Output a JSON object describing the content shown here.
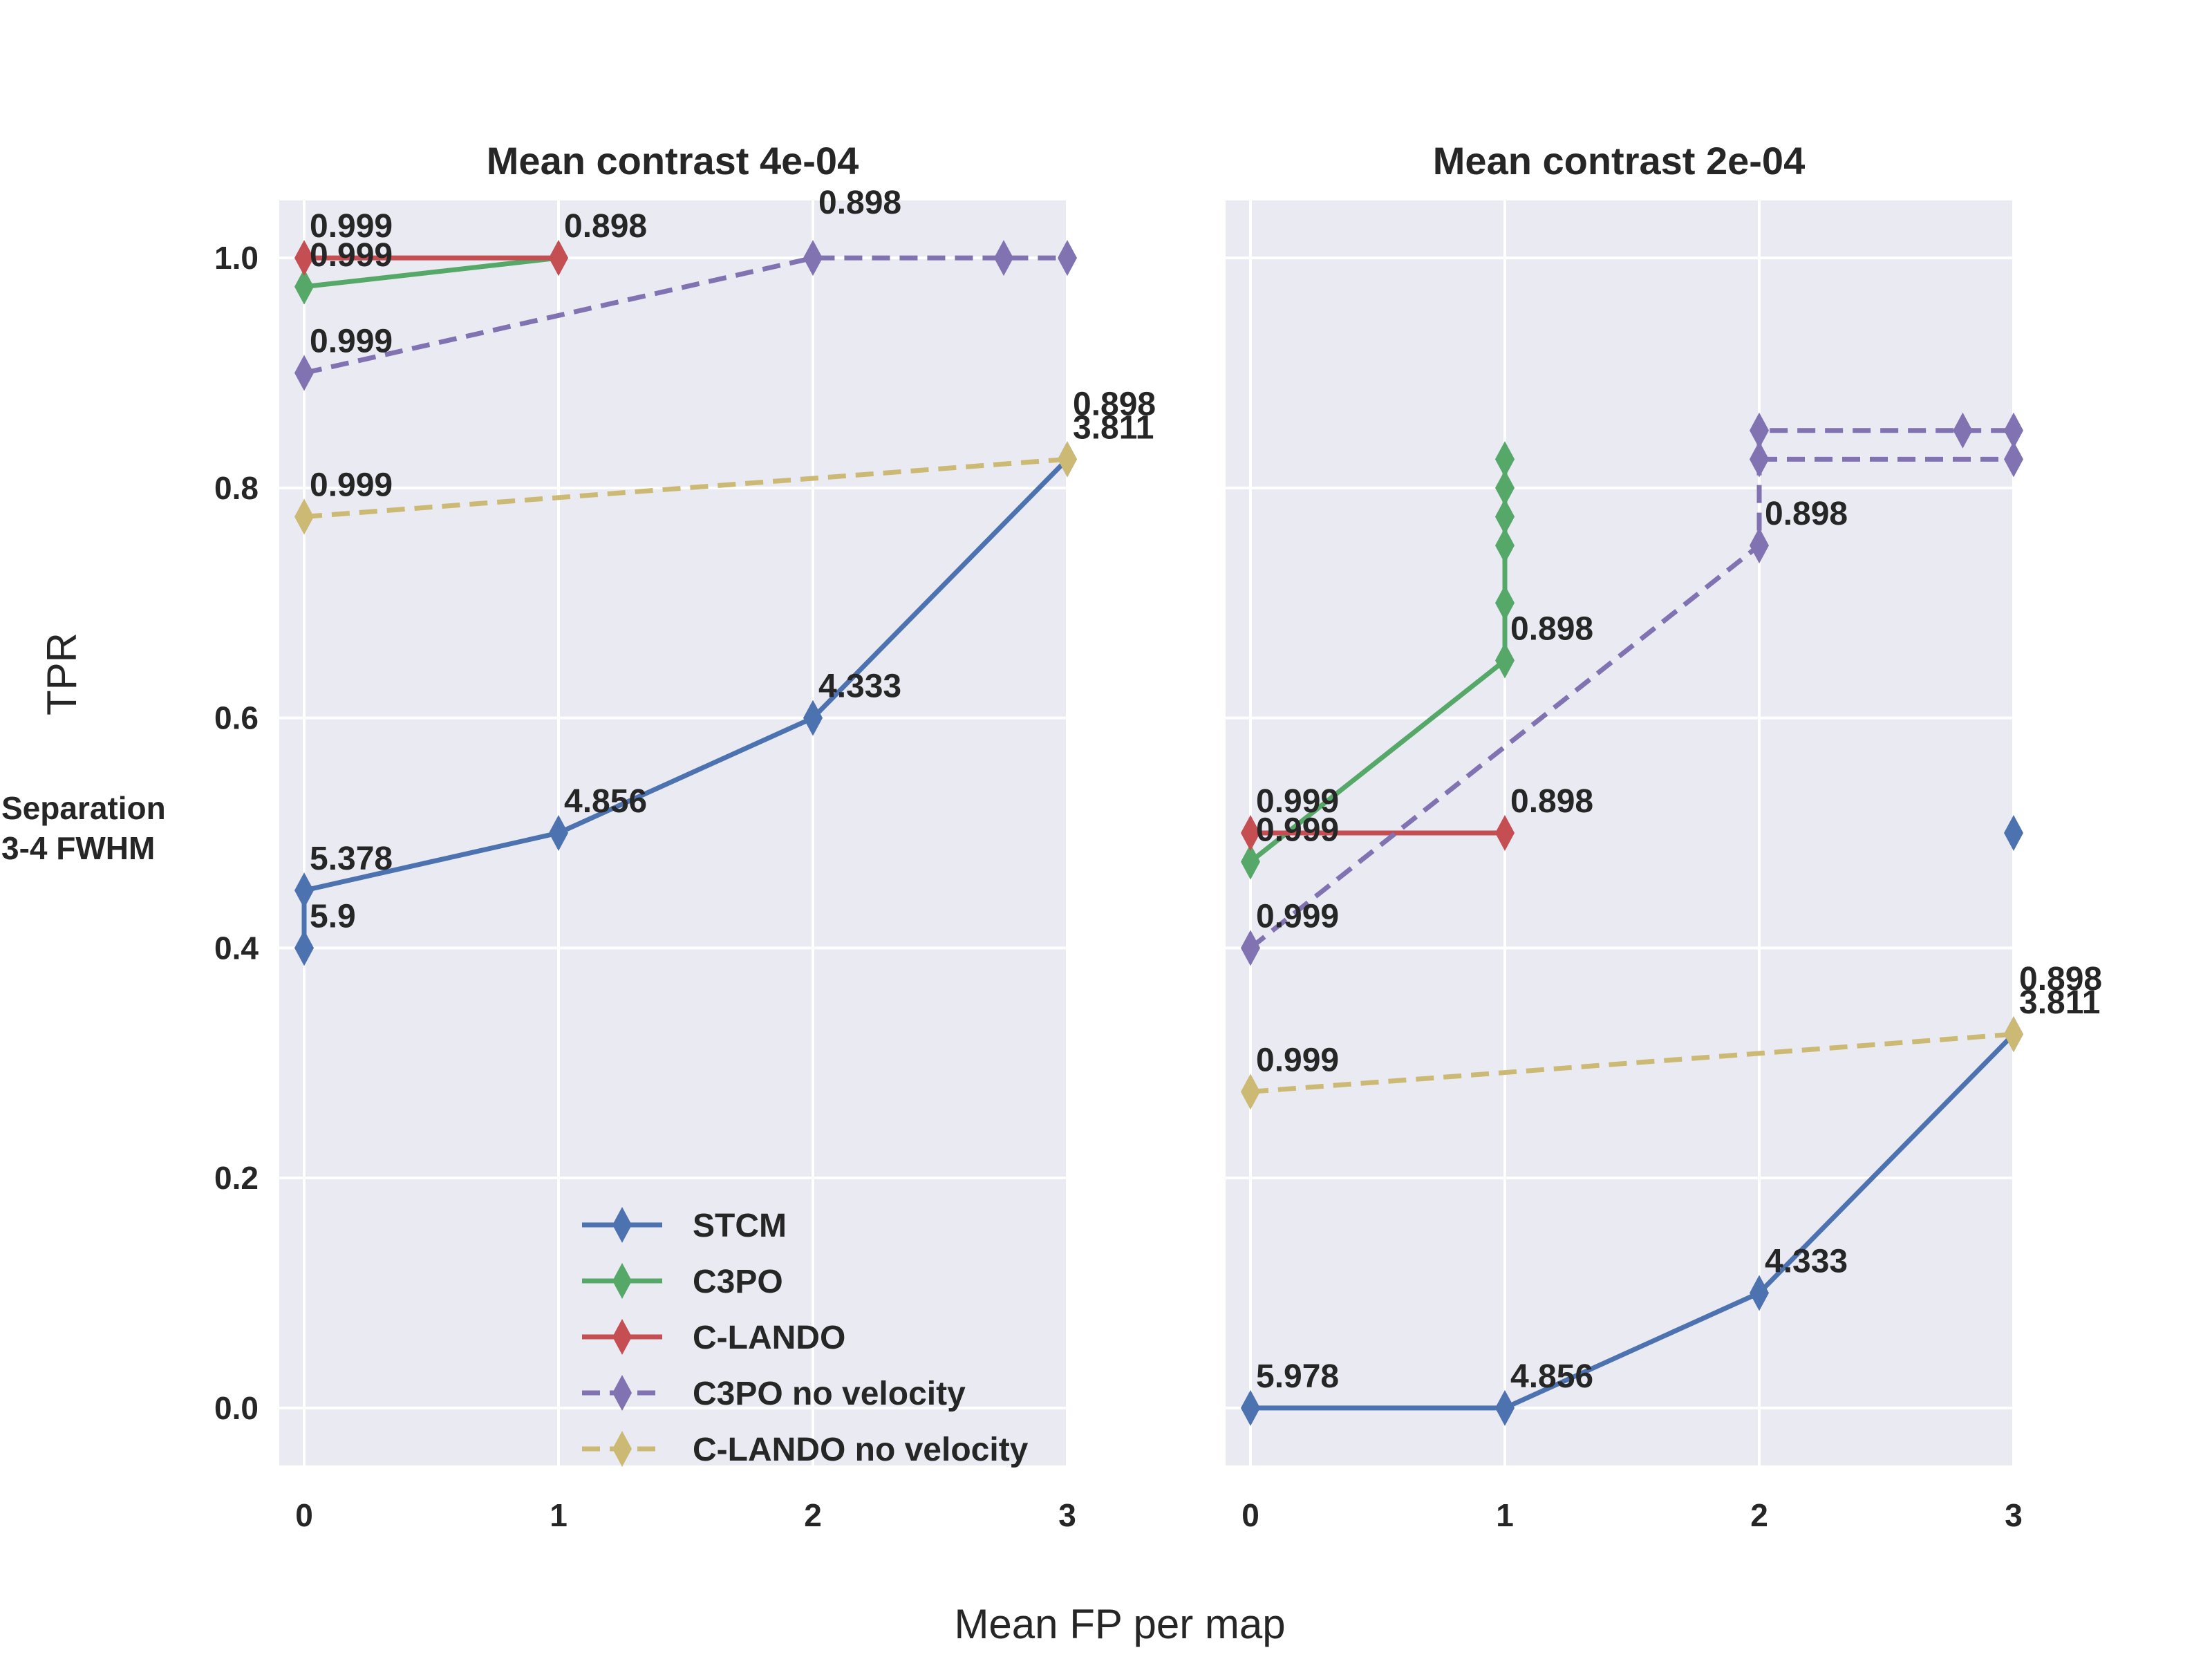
{
  "figure": {
    "xlabel": "Mean FP per map",
    "ylabel": "TPR",
    "row_label_line1": "Separation",
    "row_label_line2": "3-4 FWHM"
  },
  "legend": {
    "placement": "lower-right of left panel",
    "entries": [
      "STCM",
      "C3PO",
      "C-LANDO",
      "C3PO no velocity",
      "C-LANDO no velocity"
    ]
  },
  "chart_data": [
    {
      "type": "line",
      "title": "Mean contrast 4e-04",
      "xlim": [
        -0.1,
        3.0
      ],
      "ylim": [
        -0.05,
        1.05
      ],
      "xticks": [
        "0",
        "1",
        "2",
        "3"
      ],
      "yticks": [
        "0.0",
        "0.2",
        "0.4",
        "0.6",
        "0.8",
        "1.0"
      ],
      "grid": true,
      "series": [
        {
          "name": "STCM",
          "color": "#4c72b0",
          "dashed": false,
          "x": [
            0,
            0,
            1,
            2,
            3
          ],
          "y": [
            0.4,
            0.45,
            0.5,
            0.6,
            0.825
          ]
        },
        {
          "name": "C3PO",
          "color": "#55a868",
          "dashed": false,
          "x": [
            0,
            1
          ],
          "y": [
            0.975,
            1.0
          ]
        },
        {
          "name": "C-LANDO",
          "color": "#c44e52",
          "dashed": false,
          "x": [
            0,
            1
          ],
          "y": [
            1.0,
            1.0
          ]
        },
        {
          "name": "C3PO no velocity",
          "color": "#8172b2",
          "dashed": true,
          "x": [
            0,
            2,
            2.75,
            3
          ],
          "y": [
            0.9,
            1.0,
            1.0,
            1.0
          ]
        },
        {
          "name": "C-LANDO no velocity",
          "color": "#ccb974",
          "dashed": true,
          "x": [
            0,
            3
          ],
          "y": [
            0.775,
            0.825
          ]
        }
      ],
      "annotations": [
        {
          "text": "0.999",
          "x": 0,
          "y": 1.0,
          "above": true
        },
        {
          "text": "0.999",
          "x": 0,
          "y": 0.975,
          "above": true
        },
        {
          "text": "0.999",
          "x": 0,
          "y": 0.9,
          "above": true
        },
        {
          "text": "0.999",
          "x": 0,
          "y": 0.775,
          "above": true
        },
        {
          "text": "0.898",
          "x": 1,
          "y": 1.0,
          "above": true
        },
        {
          "text": "0.898",
          "x": 2,
          "y": 1.0,
          "above": true,
          "raise": 1
        },
        {
          "text": "0.898",
          "x": 3,
          "y": 0.825,
          "above": true,
          "raise": 1
        },
        {
          "text": "3.811",
          "x": 3,
          "y": 0.825,
          "above": true
        },
        {
          "text": "5.9",
          "x": 0,
          "y": 0.4,
          "above": true
        },
        {
          "text": "5.378",
          "x": 0,
          "y": 0.45,
          "above": true
        },
        {
          "text": "4.856",
          "x": 1,
          "y": 0.5,
          "above": true
        },
        {
          "text": "4.333",
          "x": 2,
          "y": 0.6,
          "above": true
        }
      ]
    },
    {
      "type": "line",
      "title": "Mean contrast 2e-04",
      "xlim": [
        -0.1,
        3.0
      ],
      "ylim": [
        -0.05,
        1.05
      ],
      "xticks": [
        "0",
        "1",
        "2",
        "3"
      ],
      "yticks": [],
      "grid": true,
      "series": [
        {
          "name": "STCM",
          "color": "#4c72b0",
          "dashed": false,
          "x": [
            0,
            1,
            2,
            3
          ],
          "y": [
            0.0,
            0.0,
            0.1,
            0.325
          ]
        },
        {
          "name": "STCM",
          "color": "#4c72b0",
          "dashed": false,
          "x": [
            3
          ],
          "y": [
            0.5
          ]
        },
        {
          "name": "C3PO",
          "color": "#55a868",
          "dashed": false,
          "x": [
            0,
            1,
            1,
            1,
            1,
            1,
            1,
            1,
            1
          ],
          "y": [
            0.475,
            0.65,
            0.7,
            0.75,
            0.775,
            0.775,
            0.8,
            0.825,
            0.825
          ]
        },
        {
          "name": "C-LANDO",
          "color": "#c44e52",
          "dashed": false,
          "x": [
            0,
            1
          ],
          "y": [
            0.5,
            0.5
          ]
        },
        {
          "name": "C3PO no velocity",
          "color": "#8172b2",
          "dashed": true,
          "x": [
            0,
            2,
            2,
            2,
            2.8,
            3
          ],
          "y": [
            0.4,
            0.75,
            0.825,
            0.85,
            0.85,
            0.85
          ]
        },
        {
          "name": "C3PO no velocity",
          "color": "#8172b2",
          "dashed": true,
          "x": [
            2,
            3
          ],
          "y": [
            0.825,
            0.825
          ]
        },
        {
          "name": "C-LANDO no velocity",
          "color": "#ccb974",
          "dashed": true,
          "x": [
            0,
            3
          ],
          "y": [
            0.275,
            0.325
          ]
        }
      ],
      "annotations": [
        {
          "text": "0.999",
          "x": 0,
          "y": 0.5,
          "above": true
        },
        {
          "text": "0.999",
          "x": 0,
          "y": 0.475,
          "above": true
        },
        {
          "text": "0.999",
          "x": 0,
          "y": 0.4,
          "above": true
        },
        {
          "text": "0.999",
          "x": 0,
          "y": 0.275,
          "above": true
        },
        {
          "text": "0.898",
          "x": 1,
          "y": 0.5,
          "above": true
        },
        {
          "text": "0.898",
          "x": 1,
          "y": 0.65,
          "above": true
        },
        {
          "text": "0.898",
          "x": 2,
          "y": 0.75,
          "above": true
        },
        {
          "text": "0.898",
          "x": 3,
          "y": 0.325,
          "above": true,
          "raise": 1
        },
        {
          "text": "3.811",
          "x": 3,
          "y": 0.325,
          "above": true
        },
        {
          "text": "5.978",
          "x": 0,
          "y": 0.0,
          "above": true
        },
        {
          "text": "4.856",
          "x": 1,
          "y": 0.0,
          "above": true
        },
        {
          "text": "4.333",
          "x": 2,
          "y": 0.1,
          "above": true
        }
      ]
    }
  ]
}
